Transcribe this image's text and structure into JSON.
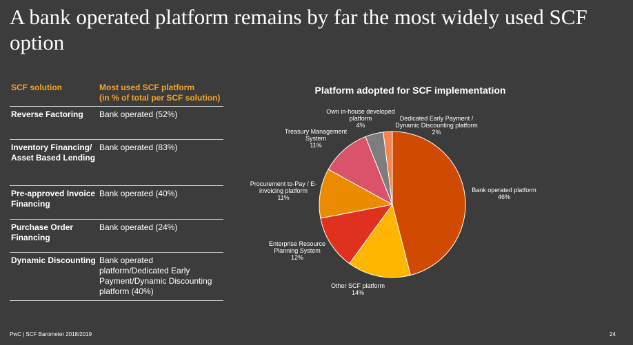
{
  "slide": {
    "title": "A bank operated platform remains by far the most widely used SCF option",
    "footer": "PwC | SCF Barometer 2018/2019",
    "page_number": "24"
  },
  "table": {
    "headers": [
      "SCF solution",
      "Most used SCF platform\n(in % of total per SCF solution)"
    ],
    "rows": [
      {
        "solution": "Reverse Factoring",
        "platform": "Bank operated (52%)"
      },
      {
        "solution": "Inventory Financing/ Asset Based Lending",
        "platform": "Bank operated (83%)"
      },
      {
        "solution": "Pre-approved Invoice Financing",
        "platform": "Bank operated (40%)"
      },
      {
        "solution": "Purchase Order Financing",
        "platform": "Bank operated (24%)"
      },
      {
        "solution": "Dynamic Discounting",
        "platform": "Bank operated platform/Dedicated Early Payment/Dynamic Discounting platform (40%)"
      }
    ]
  },
  "chart_data": {
    "type": "pie",
    "title": "Platform adopted for SCF implementation",
    "slices": [
      {
        "label": "Bank operated platform",
        "value": 46,
        "pct_label": "46%",
        "color": "#d04a02"
      },
      {
        "label": "Other SCF platform",
        "value": 14,
        "pct_label": "14%",
        "color": "#ffb600"
      },
      {
        "label": "Enterprise Resource Planning System",
        "value": 12,
        "pct_label": "12%",
        "color": "#e0301e"
      },
      {
        "label": "Procurement to-Pay / E-invoicing platform",
        "value": 11,
        "pct_label": "11%",
        "color": "#eb8c00"
      },
      {
        "label": "Treasury Management System",
        "value": 11,
        "pct_label": "11%",
        "color": "#db536a"
      },
      {
        "label": "Own in-house developed platform",
        "value": 4,
        "pct_label": "4%",
        "color": "#7d7d7d"
      },
      {
        "label": "Dedicated Early Payment / Dynamic Discounting platform",
        "value": 2,
        "pct_label": "2%",
        "color": "#f3854d"
      }
    ]
  }
}
